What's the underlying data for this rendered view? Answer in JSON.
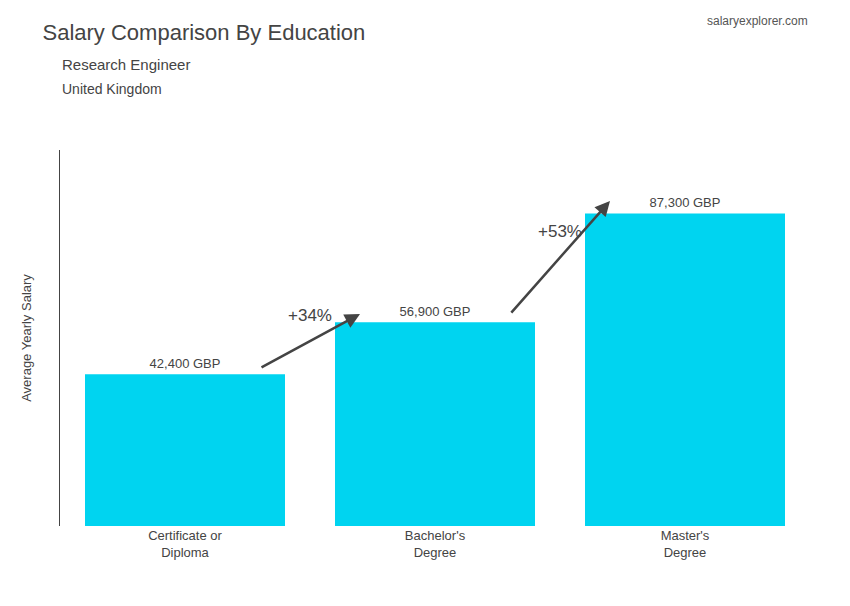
{
  "chart_data": {
    "type": "bar",
    "title": "Salary Comparison By Education",
    "subtitle": [
      "Research Engineer",
      "United Kingdom"
    ],
    "categories": [
      "Certificate or\nDiploma",
      "Bachelor's\nDegree",
      "Master's\nDegree"
    ],
    "values": [
      42400,
      56900,
      87300
    ],
    "value_labels": [
      "42,400 GBP",
      "56,900 GBP",
      "87,300 GBP"
    ],
    "data_labels": true,
    "color": "#00d4f0",
    "ylabel": "Average Yearly Salary",
    "ylim": [
      0,
      105000
    ],
    "grid": false,
    "tick_labels": "x",
    "annotations": [
      "salaryexplorer.com",
      {
        "text": "+34%",
        "from": "Certificate or\nDiploma",
        "to": "Bachelor's\nDegree"
      },
      {
        "text": "+53%",
        "from": "Bachelor's\nDegree",
        "to": "Master's\nDegree"
      }
    ]
  }
}
